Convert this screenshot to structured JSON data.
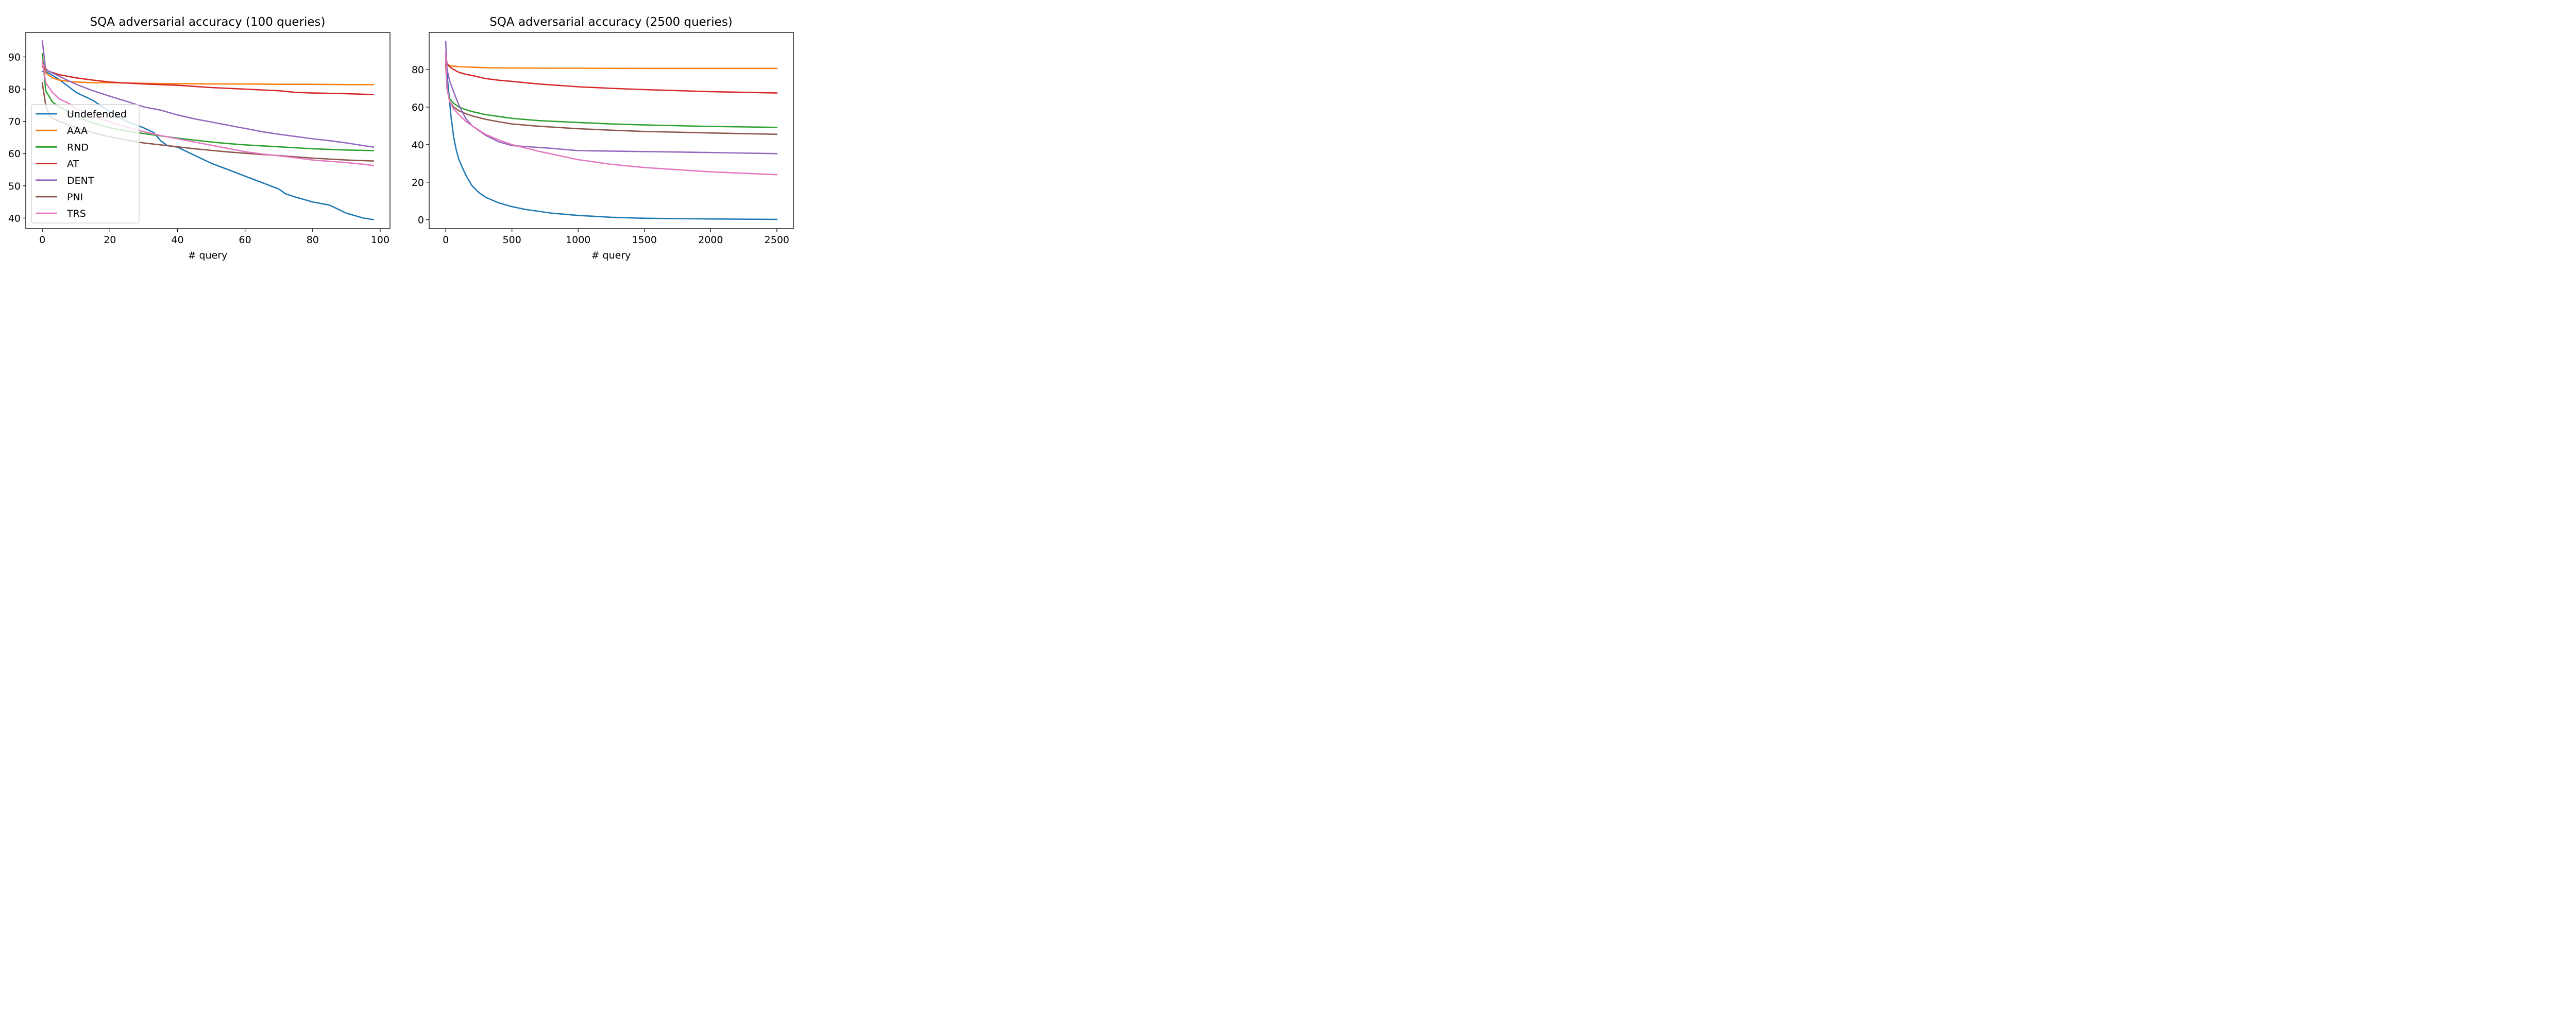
{
  "colors": {
    "Undefended": "#1f77b4",
    "AAA": "#ff7f0e",
    "RND": "#2ca02c",
    "AT": "#d62728",
    "DENT": "#9467bd",
    "PNI": "#8c564b",
    "TRS": "#e377c2"
  },
  "chart_data": [
    {
      "type": "line",
      "title": "SQA adversarial accuracy (100 queries)",
      "xlabel": "# query",
      "ylabel": "",
      "xlim": [
        -4.9,
        102.9
      ],
      "ylim": [
        36.7,
        97.6
      ],
      "xticks": [
        0,
        20,
        40,
        60,
        80,
        100
      ],
      "yticks": [
        40,
        50,
        60,
        70,
        80,
        90
      ],
      "grid": false,
      "legend": "lower-left",
      "series": [
        {
          "name": "Undefended",
          "x": [
            0,
            1,
            5,
            10,
            15,
            20,
            25,
            30,
            33,
            35,
            37,
            40,
            45,
            50,
            55,
            60,
            65,
            70,
            72,
            75,
            80,
            85,
            88,
            90,
            95,
            98
          ],
          "y": [
            85.5,
            85.5,
            83,
            79,
            76.5,
            73,
            70,
            68,
            66.5,
            64,
            62.5,
            62,
            59.5,
            57,
            55,
            53,
            51,
            49,
            47.5,
            46.5,
            45,
            44,
            42.5,
            41.5,
            40,
            39.5
          ]
        },
        {
          "name": "AAA",
          "x": [
            0,
            1,
            3,
            5,
            8,
            10,
            15,
            20,
            30,
            40,
            50,
            60,
            70,
            80,
            90,
            98
          ],
          "y": [
            89,
            85,
            83.5,
            82.8,
            82.4,
            82.2,
            82,
            82,
            81.8,
            81.7,
            81.6,
            81.6,
            81.5,
            81.5,
            81.4,
            81.4
          ]
        },
        {
          "name": "RND",
          "x": [
            0,
            1,
            3,
            5,
            8,
            10,
            15,
            20,
            25,
            30,
            35,
            40,
            45,
            50,
            55,
            60,
            65,
            70,
            75,
            80,
            85,
            90,
            95,
            98
          ],
          "y": [
            91,
            79.5,
            76,
            74.5,
            72.8,
            71.5,
            69.5,
            68,
            67,
            66.2,
            65.5,
            64.8,
            64.2,
            63.6,
            63.1,
            62.7,
            62.4,
            62.1,
            61.8,
            61.5,
            61.3,
            61.1,
            61,
            60.9
          ]
        },
        {
          "name": "AT",
          "x": [
            0,
            2,
            5,
            10,
            15,
            20,
            25,
            30,
            40,
            50,
            60,
            70,
            75,
            80,
            90,
            98
          ],
          "y": [
            87,
            85.5,
            84.5,
            83.5,
            82.8,
            82.2,
            81.9,
            81.6,
            81.2,
            80.5,
            80,
            79.5,
            79,
            78.8,
            78.6,
            78.3
          ]
        },
        {
          "name": "DENT",
          "x": [
            0,
            1,
            3,
            5,
            8,
            10,
            15,
            20,
            25,
            30,
            35,
            40,
            45,
            50,
            55,
            60,
            65,
            70,
            75,
            80,
            85,
            90,
            95,
            98
          ],
          "y": [
            95,
            86,
            85,
            84,
            82.5,
            81.5,
            79.5,
            77.8,
            76.2,
            74.5,
            73.5,
            72,
            70.8,
            69.8,
            68.8,
            67.8,
            66.8,
            66,
            65.3,
            64.6,
            64,
            63.3,
            62.5,
            62
          ]
        },
        {
          "name": "PNI",
          "x": [
            0,
            1,
            2,
            3,
            5,
            8,
            10,
            15,
            20,
            25,
            30,
            35,
            40,
            45,
            50,
            55,
            60,
            65,
            70,
            75,
            80,
            85,
            90,
            95,
            98
          ],
          "y": [
            82,
            75,
            72,
            71,
            70,
            68.8,
            68,
            66.5,
            65.2,
            64.2,
            63.3,
            62.7,
            62.1,
            61.5,
            61,
            60.5,
            60.1,
            59.7,
            59.4,
            59,
            58.6,
            58.3,
            58,
            57.8,
            57.7
          ]
        },
        {
          "name": "TRS",
          "x": [
            0,
            1,
            3,
            5,
            8,
            10,
            15,
            20,
            25,
            30,
            35,
            40,
            45,
            50,
            55,
            60,
            65,
            70,
            75,
            80,
            85,
            90,
            95,
            98
          ],
          "y": [
            89,
            82,
            79,
            77,
            75.5,
            74,
            71.5,
            69.8,
            68.2,
            66.8,
            65.6,
            64.6,
            63.6,
            62.6,
            61.6,
            60.6,
            59.9,
            59.3,
            58.7,
            58,
            57.6,
            57.2,
            56.7,
            56.3
          ]
        }
      ]
    },
    {
      "type": "line",
      "title": "SQA adversarial accuracy (2500 queries)",
      "xlabel": "# query",
      "ylabel": "",
      "xlim": [
        -125,
        2625
      ],
      "ylim": [
        -4.75,
        99.75
      ],
      "xticks": [
        0,
        500,
        1000,
        1500,
        2000,
        2500
      ],
      "yticks": [
        0,
        20,
        40,
        60,
        80
      ],
      "grid": false,
      "legend": "none",
      "series": [
        {
          "name": "Undefended",
          "x": [
            0,
            20,
            40,
            60,
            80,
            100,
            150,
            200,
            250,
            300,
            400,
            500,
            600,
            800,
            1000,
            1250,
            1500,
            2000,
            2500
          ],
          "y": [
            85,
            70,
            55,
            44,
            37,
            32,
            24,
            18,
            14.5,
            12,
            9,
            7,
            5.5,
            3.5,
            2.3,
            1.3,
            0.8,
            0.4,
            0.2
          ]
        },
        {
          "name": "AAA",
          "x": [
            0,
            10,
            30,
            60,
            100,
            200,
            300,
            500,
            800,
            1000,
            1500,
            2000,
            2500
          ],
          "y": [
            89,
            83,
            82,
            81.8,
            81.5,
            81.2,
            81,
            80.8,
            80.7,
            80.7,
            80.6,
            80.6,
            80.6
          ]
        },
        {
          "name": "AT",
          "x": [
            0,
            10,
            30,
            60,
            100,
            150,
            200,
            300,
            400,
            500,
            700,
            1000,
            1250,
            1500,
            2000,
            2500
          ],
          "y": [
            87,
            83,
            81.5,
            80,
            78.5,
            77.5,
            76.8,
            75.2,
            74.3,
            73.7,
            72.3,
            70.8,
            70,
            69.3,
            68.2,
            67.5
          ]
        },
        {
          "name": "RND",
          "x": [
            0,
            10,
            30,
            60,
            100,
            150,
            200,
            300,
            400,
            500,
            700,
            1000,
            1250,
            1500,
            2000,
            2500
          ],
          "y": [
            88,
            70,
            64.5,
            62,
            60,
            58.7,
            57.6,
            56,
            55,
            54,
            52.8,
            51.8,
            51,
            50.5,
            49.7,
            49.2
          ]
        },
        {
          "name": "PNI",
          "x": [
            0,
            10,
            30,
            60,
            100,
            150,
            200,
            300,
            400,
            500,
            700,
            1000,
            1250,
            1500,
            2000,
            2500
          ],
          "y": [
            83,
            70,
            63,
            60,
            58,
            56.5,
            55.3,
            53.5,
            52.2,
            51,
            49.8,
            48.5,
            47.7,
            47,
            46.2,
            45.5
          ]
        },
        {
          "name": "DENT",
          "x": [
            0,
            10,
            30,
            60,
            100,
            150,
            200,
            300,
            400,
            500,
            600,
            800,
            1000,
            1500,
            2000,
            2500
          ],
          "y": [
            95,
            80,
            74,
            68,
            61,
            54,
            50,
            45,
            41.5,
            39.5,
            39,
            38,
            36.8,
            36.3,
            35.8,
            35.2
          ]
        },
        {
          "name": "TRS",
          "x": [
            0,
            10,
            30,
            60,
            100,
            150,
            200,
            300,
            400,
            500,
            700,
            1000,
            1250,
            1500,
            2000,
            2500
          ],
          "y": [
            89,
            70,
            63,
            59,
            56,
            52.5,
            50,
            45.5,
            42.5,
            40,
            36.5,
            32,
            29.5,
            27.8,
            25.5,
            24
          ]
        }
      ]
    }
  ]
}
